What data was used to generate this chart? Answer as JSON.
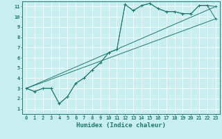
{
  "xlabel": "Humidex (Indice chaleur)",
  "bg_color": "#c8eef0",
  "grid_color": "#ffffff",
  "line_color": "#1a7a6e",
  "xlim": [
    -0.5,
    23.5
  ],
  "ylim": [
    0.5,
    11.5
  ],
  "xticks": [
    0,
    1,
    2,
    3,
    4,
    5,
    6,
    7,
    8,
    9,
    10,
    11,
    12,
    13,
    14,
    15,
    16,
    17,
    18,
    19,
    20,
    21,
    22,
    23
  ],
  "yticks": [
    1,
    2,
    3,
    4,
    5,
    6,
    7,
    8,
    9,
    10,
    11
  ],
  "curve1_x": [
    0,
    1,
    2,
    3,
    4,
    5,
    6,
    7,
    8,
    9,
    10,
    11,
    12,
    13,
    14,
    15,
    16,
    17,
    18,
    19,
    20,
    21,
    22,
    23
  ],
  "curve1_y": [
    3.0,
    2.7,
    3.0,
    3.0,
    1.5,
    2.2,
    3.5,
    4.0,
    4.8,
    5.5,
    6.5,
    6.8,
    11.2,
    10.6,
    11.1,
    11.3,
    10.8,
    10.5,
    10.5,
    10.3,
    10.3,
    11.1,
    11.1,
    11.0
  ],
  "curve2_x": [
    0,
    1,
    2,
    3,
    4,
    5,
    6,
    7,
    8,
    9,
    10,
    11,
    12,
    13,
    14,
    15,
    16,
    17,
    18,
    19,
    20,
    21,
    22,
    23
  ],
  "curve2_y": [
    3.0,
    2.7,
    3.0,
    3.0,
    1.5,
    2.2,
    3.5,
    4.0,
    4.8,
    5.5,
    6.5,
    6.8,
    11.2,
    10.6,
    11.1,
    11.3,
    10.8,
    10.5,
    10.5,
    10.3,
    10.3,
    11.1,
    11.1,
    9.8
  ],
  "line1_x": [
    0,
    23
  ],
  "line1_y": [
    3.0,
    9.8
  ],
  "line2_x": [
    0,
    23
  ],
  "line2_y": [
    3.0,
    11.0
  ],
  "marker": "+"
}
